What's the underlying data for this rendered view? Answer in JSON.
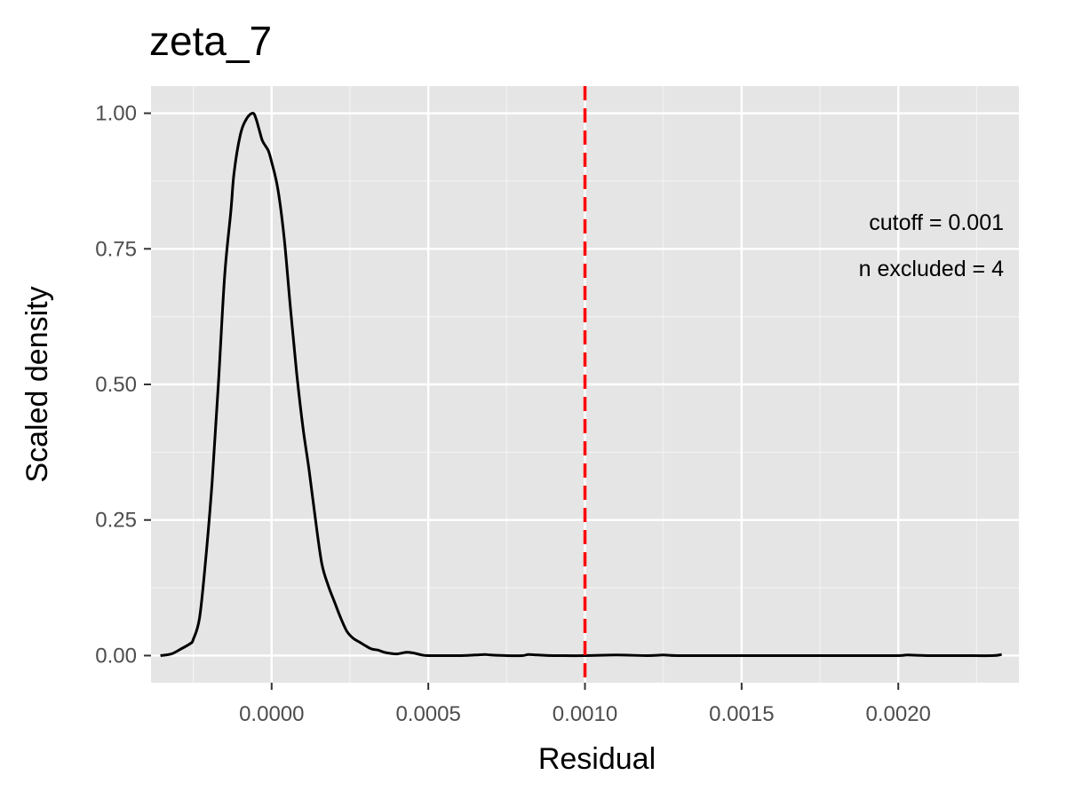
{
  "chart_data": {
    "type": "line",
    "title": "zeta_7",
    "xlabel": "Residual",
    "ylabel": "Scaled density",
    "xlim": [
      -0.000385,
      0.002385
    ],
    "ylim": [
      -0.05,
      1.05
    ],
    "x_ticks": [
      0.0,
      0.0005,
      0.001,
      0.0015,
      0.002
    ],
    "x_tick_labels": [
      "0.0000",
      "0.0005",
      "0.0010",
      "0.0015",
      "0.0020"
    ],
    "y_ticks": [
      0.0,
      0.25,
      0.5,
      0.75,
      1.0
    ],
    "y_tick_labels": [
      "0.00",
      "0.25",
      "0.50",
      "0.75",
      "1.00"
    ],
    "grid": true,
    "background": "#e5e5e5",
    "line_color": "#000000",
    "cutoff_line": {
      "x": 0.001,
      "color": "#ff0000",
      "style": "dashed"
    },
    "annotations": [
      "cutoff = 0.001",
      "n excluded = 4"
    ],
    "series": [
      {
        "x": [
          -0.000355,
          -0.00032,
          -0.00029,
          -0.00026,
          -0.00025,
          -0.00023,
          -0.00021,
          -0.00019,
          -0.00017,
          -0.00015,
          -0.00013,
          -0.00012,
          -0.0001,
          -8e-05,
          -6e-05,
          -5e-05,
          -4e-05,
          -3e-05,
          -2e-05,
          -1e-05,
          0.0,
          2e-05,
          4e-05,
          6e-05,
          8e-05,
          0.0001,
          0.00012,
          0.00014,
          0.00016,
          0.00018,
          0.0002,
          0.00022,
          0.00024,
          0.00026,
          0.00028,
          0.0003,
          0.00032,
          0.00034,
          0.00036,
          0.00038,
          0.0004,
          0.00043,
          0.00045,
          0.00048,
          0.0005,
          0.00055,
          0.0006,
          0.00065,
          0.00068,
          0.0007,
          0.00075,
          0.0008,
          0.00082,
          0.00085,
          0.0009,
          0.001,
          0.0011,
          0.0012,
          0.00125,
          0.0013,
          0.0015,
          0.0017,
          0.0019,
          0.002,
          0.00203,
          0.0021,
          0.0022,
          0.0023,
          0.00233
        ],
        "y": [
          0.0,
          0.003,
          0.012,
          0.022,
          0.03,
          0.07,
          0.18,
          0.32,
          0.5,
          0.7,
          0.82,
          0.89,
          0.96,
          0.99,
          1.0,
          0.99,
          0.97,
          0.95,
          0.94,
          0.93,
          0.91,
          0.86,
          0.77,
          0.64,
          0.52,
          0.42,
          0.34,
          0.25,
          0.17,
          0.13,
          0.1,
          0.07,
          0.045,
          0.032,
          0.025,
          0.018,
          0.012,
          0.01,
          0.006,
          0.004,
          0.003,
          0.006,
          0.005,
          0.001,
          0.0,
          0.0,
          0.0,
          0.001,
          0.002,
          0.001,
          0.0,
          0.0,
          0.002,
          0.001,
          0.0,
          0.0,
          0.001,
          0.0,
          0.001,
          0.0,
          0.0,
          0.0,
          0.0,
          0.0,
          0.001,
          0.0,
          0.0,
          0.0,
          0.002
        ]
      }
    ]
  }
}
